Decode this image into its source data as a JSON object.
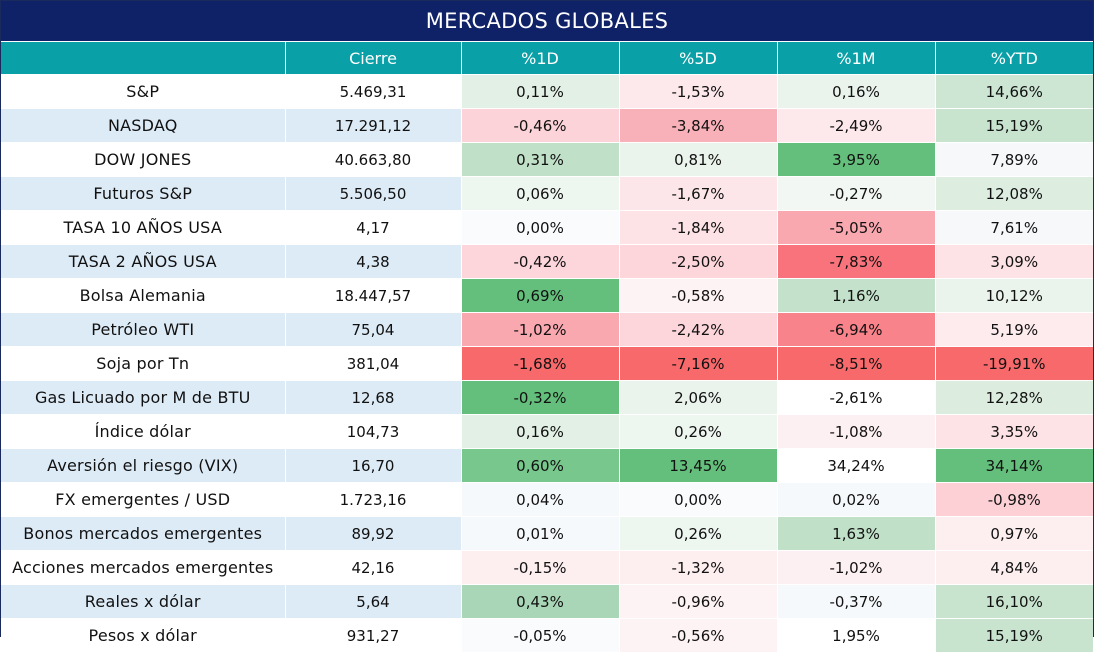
{
  "title": "MERCADOS GLOBALES",
  "headers": [
    "",
    "Cierre",
    "%1D",
    "%5D",
    "%1M",
    "%YTD"
  ],
  "rows": [
    {
      "name": "S&P",
      "cierre": "5.469,31",
      "d1": "0,11%",
      "d5": "-1,53%",
      "m1": "0,16%",
      "ytd": "14,66%",
      "colors": [
        "#e2f0e6",
        "#fde9ec",
        "#eaf4ec",
        "#cce6d3"
      ]
    },
    {
      "name": "NASDAQ",
      "cierre": "17.291,12",
      "d1": "-0,46%",
      "d5": "-3,84%",
      "m1": "-2,49%",
      "ytd": "15,19%",
      "colors": [
        "#fbd3d8",
        "#f8b1b8",
        "#fde9ec",
        "#c8e4cf"
      ]
    },
    {
      "name": "DOW JONES",
      "cierre": "40.663,80",
      "d1": "0,31%",
      "d5": "0,81%",
      "m1": "3,95%",
      "ytd": "7,89%",
      "colors": [
        "#c0e0c8",
        "#eaf4ec",
        "#63bf7b",
        "#f6f8fa"
      ]
    },
    {
      "name": "Futuros S&P",
      "cierre": "5.506,50",
      "d1": "0,06%",
      "d5": "-1,67%",
      "m1": "-0,27%",
      "ytd": "12,08%",
      "colors": [
        "#eef6f0",
        "#fde6e9",
        "#f2f7f3",
        "#ddeee1"
      ]
    },
    {
      "name": "TASA 10 AÑOS USA",
      "cierre": "4,17",
      "d1": "0,00%",
      "d5": "-1,84%",
      "m1": "-5,05%",
      "ytd": "7,61%",
      "colors": [
        "#f9fbfc",
        "#fde3e6",
        "#f9a8b0",
        "#f6f8fa"
      ]
    },
    {
      "name": "TASA 2 AÑOS USA",
      "cierre": "4,38",
      "d1": "-0,42%",
      "d5": "-2,50%",
      "m1": "-7,83%",
      "ytd": "3,09%",
      "colors": [
        "#fdd6db",
        "#fdd6db",
        "#f8737b",
        "#fde3e6"
      ]
    },
    {
      "name": "Bolsa Alemania",
      "cierre": "18.447,57",
      "d1": "0,69%",
      "d5": "-0,58%",
      "m1": "1,16%",
      "ytd": "10,12%",
      "colors": [
        "#63bf7b",
        "#fdf2f4",
        "#c4e2cb",
        "#eaf4ec"
      ]
    },
    {
      "name": "Petróleo WTI",
      "cierre": "75,04",
      "d1": "-1,02%",
      "d5": "-2,42%",
      "m1": "-6,94%",
      "ytd": "5,19%",
      "colors": [
        "#f9a8b0",
        "#fdd6db",
        "#f8838b",
        "#fdebee"
      ]
    },
    {
      "name": "Soja por Tn",
      "cierre": "381,04",
      "d1": "-1,68%",
      "d5": "-7,16%",
      "m1": "-8,51%",
      "ytd": "-19,91%",
      "colors": [
        "#f8696b",
        "#f8696b",
        "#f8696b",
        "#f8696b"
      ]
    },
    {
      "name": "Gas Licuado por M de BTU",
      "cierre": "12,68",
      "d1": "-0,32%",
      "d5": "2,06%",
      "m1": "-2,61%",
      "ytd": "12,28%",
      "colors": [
        "#63bf7b",
        "#eaf4ec",
        "#ffffff",
        "#dcedd f"
      ]
    },
    {
      "name": "Índice dólar",
      "cierre": "104,73",
      "d1": "0,16%",
      "d5": "0,26%",
      "m1": "-1,08%",
      "ytd": "3,35%",
      "colors": [
        "#e2f0e6",
        "#eef6f0",
        "#fdf0f2",
        "#fde3e6"
      ]
    },
    {
      "name": "Aversión el riesgo (VIX)",
      "cierre": "16,70",
      "d1": "0,60%",
      "d5": "13,45%",
      "m1": "34,24%",
      "ytd": "34,14%",
      "colors": [
        "#78c78d",
        "#63bf7b",
        "#ffffff",
        "#63bf7b"
      ]
    },
    {
      "name": "FX emergentes / USD",
      "cierre": "1.723,16",
      "d1": "0,04%",
      "d5": "0,00%",
      "m1": "0,02%",
      "ytd": "-0,98%",
      "colors": [
        "#f6f9fb",
        "#f9fbfc",
        "#f6f9fb",
        "#fcd0d5"
      ]
    },
    {
      "name": "Bonos mercados emergentes",
      "cierre": "89,92",
      "d1": "0,01%",
      "d5": "0,26%",
      "m1": "1,63%",
      "ytd": "0,97%",
      "colors": [
        "#f6f9fb",
        "#eef6f0",
        "#c0e0c8",
        "#fdeef0"
      ]
    },
    {
      "name": "Acciones mercados emergentes",
      "cierre": "42,16",
      "d1": "-0,15%",
      "d5": "-1,32%",
      "m1": "-1,02%",
      "ytd": "4,84%",
      "colors": [
        "#fdeef0",
        "#fdeef0",
        "#fdf0f2",
        "#fdeef0"
      ]
    },
    {
      "name": "Reales x dólar",
      "cierre": "5,64",
      "d1": "0,43%",
      "d5": "-0,96%",
      "m1": "-0,37%",
      "ytd": "16,10%",
      "colors": [
        "#a9d6b6",
        "#fdf2f4",
        "#f6f9fb",
        "#c8e4cf"
      ]
    },
    {
      "name": "Pesos x dólar",
      "cierre": "931,27",
      "d1": "-0,05%",
      "d5": "-0,56%",
      "m1": "1,95%",
      "ytd": "15,19%",
      "colors": [
        "#f9fbfc",
        "#fdf2f4",
        "#ffffff",
        "#c8e4cf"
      ]
    }
  ],
  "chart_data": {
    "type": "table",
    "title": "MERCADOS GLOBALES",
    "columns": [
      "",
      "Cierre",
      "%1D",
      "%5D",
      "%1M",
      "%YTD"
    ],
    "rows": [
      [
        "S&P",
        "5.469,31",
        "0,11%",
        "-1,53%",
        "0,16%",
        "14,66%"
      ],
      [
        "NASDAQ",
        "17.291,12",
        "-0,46%",
        "-3,84%",
        "-2,49%",
        "15,19%"
      ],
      [
        "DOW JONES",
        "40.663,80",
        "0,31%",
        "0,81%",
        "3,95%",
        "7,89%"
      ],
      [
        "Futuros S&P",
        "5.506,50",
        "0,06%",
        "-1,67%",
        "-0,27%",
        "12,08%"
      ],
      [
        "TASA 10 AÑOS USA",
        "4,17",
        "0,00%",
        "-1,84%",
        "-5,05%",
        "7,61%"
      ],
      [
        "TASA 2 AÑOS USA",
        "4,38",
        "-0,42%",
        "-2,50%",
        "-7,83%",
        "3,09%"
      ],
      [
        "Bolsa Alemania",
        "18.447,57",
        "0,69%",
        "-0,58%",
        "1,16%",
        "10,12%"
      ],
      [
        "Petróleo WTI",
        "75,04",
        "-1,02%",
        "-2,42%",
        "-6,94%",
        "5,19%"
      ],
      [
        "Soja por Tn",
        "381,04",
        "-1,68%",
        "-7,16%",
        "-8,51%",
        "-19,91%"
      ],
      [
        "Gas Licuado por M de BTU",
        "12,68",
        "-0,32%",
        "2,06%",
        "-2,61%",
        "12,28%"
      ],
      [
        "Índice dólar",
        "104,73",
        "0,16%",
        "0,26%",
        "-1,08%",
        "3,35%"
      ],
      [
        "Aversión el riesgo (VIX)",
        "16,70",
        "0,60%",
        "13,45%",
        "34,24%",
        "34,14%"
      ],
      [
        "FX emergentes / USD",
        "1.723,16",
        "0,04%",
        "0,00%",
        "0,02%",
        "-0,98%"
      ],
      [
        "Bonos mercados emergentes",
        "89,92",
        "0,01%",
        "0,26%",
        "1,63%",
        "0,97%"
      ],
      [
        "Acciones mercados emergentes",
        "42,16",
        "-0,15%",
        "-1,32%",
        "-1,02%",
        "4,84%"
      ],
      [
        "Reales x dólar",
        "5,64",
        "0,43%",
        "-0,96%",
        "-0,37%",
        "16,10%"
      ],
      [
        "Pesos x dólar",
        "931,27",
        "-0,05%",
        "-0,56%",
        "1,95%",
        "15,19%"
      ]
    ]
  }
}
